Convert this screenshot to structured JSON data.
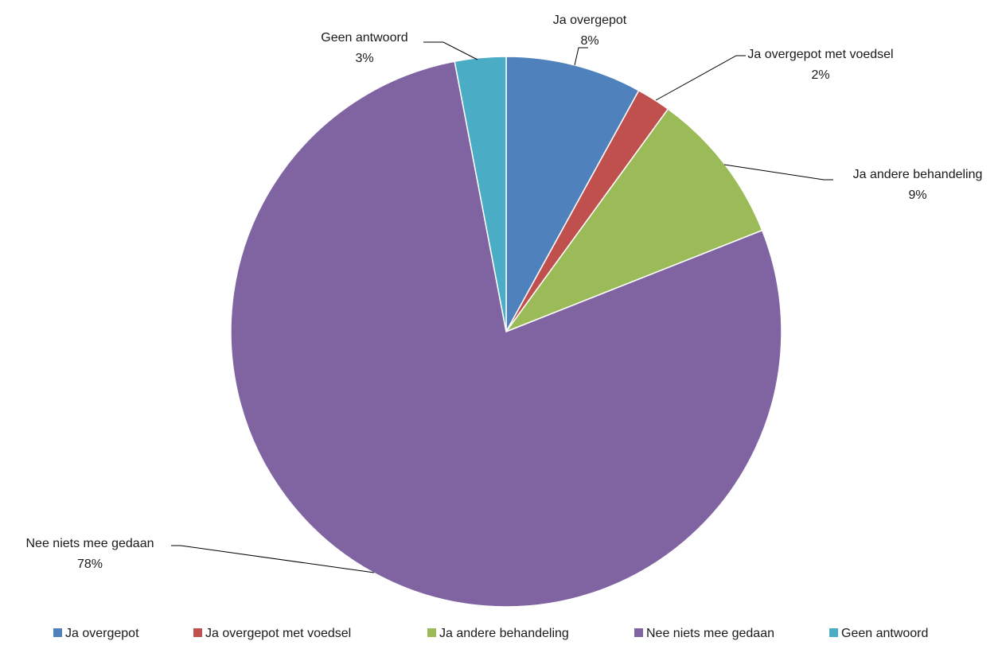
{
  "chart_data": {
    "type": "pie",
    "title": "",
    "legend_position": "bottom",
    "slices": [
      {
        "name": "Ja overgepot",
        "value": 8,
        "label": "8%",
        "color": "#4F81BD"
      },
      {
        "name": "Ja overgepot met voedsel",
        "value": 2,
        "label": "2%",
        "color": "#C0504D"
      },
      {
        "name": "Ja andere behandeling",
        "value": 9,
        "label": "9%",
        "color": "#9BBB59"
      },
      {
        "name": "Nee niets mee gedaan",
        "value": 78,
        "label": "78%",
        "color": "#8064A2"
      },
      {
        "name": "Geen antwoord",
        "value": 3,
        "label": "3%",
        "color": "#4BACC6"
      }
    ]
  }
}
